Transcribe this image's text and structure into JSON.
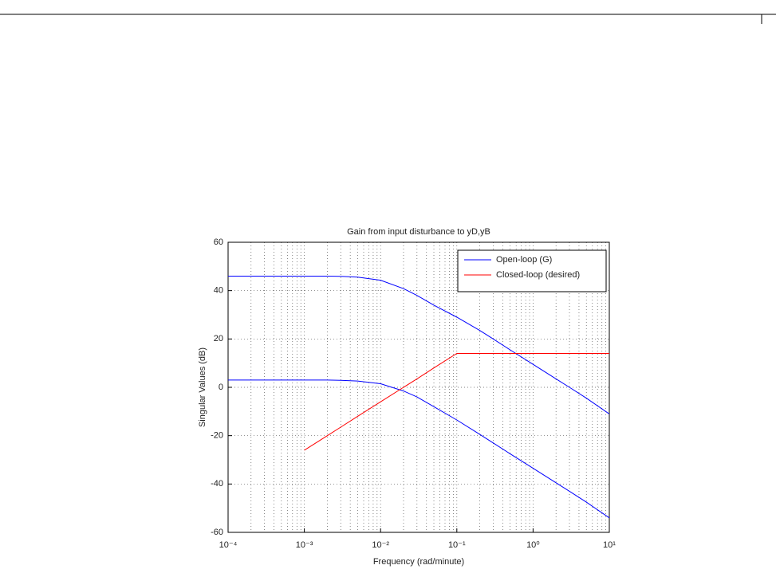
{
  "chart_data": {
    "type": "line",
    "title": "Gain from input disturbance to yD,yB",
    "x_label": "Frequency (rad/minute)",
    "y_label": "Singular Values (dB)",
    "x_scale": "log",
    "x": [
      0.0001,
      0.0003,
      0.001,
      0.002,
      0.003,
      0.005,
      0.01,
      0.02,
      0.03,
      0.05,
      0.1,
      0.2,
      0.3,
      0.5,
      1,
      2,
      3,
      5,
      10
    ],
    "series": [
      {
        "name": "Open-loop (G)",
        "color": "#0000ff",
        "values": [
          46,
          46,
          46,
          46,
          45.9,
          45.6,
          44.3,
          40.8,
          38,
          34,
          29,
          23.5,
          20,
          15.5,
          9.5,
          3.5,
          0,
          -4.5,
          -11
        ]
      },
      {
        "color": "#0000ff",
        "values": [
          3,
          3,
          3,
          3,
          2.9,
          2.6,
          1.5,
          -1.5,
          -4,
          -8,
          -13.5,
          -19.5,
          -23,
          -27.5,
          -33.5,
          -39.5,
          -43,
          -47.5,
          -54
        ]
      },
      {
        "name": "Closed-loop (desired)",
        "color": "#ff0000",
        "values": [
          null,
          null,
          -26,
          -20,
          -16.5,
          -12,
          -6,
          0,
          3.5,
          8,
          14,
          14,
          14,
          14,
          14,
          14,
          14,
          14,
          14
        ]
      }
    ],
    "xlim": [
      0.0001,
      10
    ],
    "xticks": [
      {
        "value": 0.0001,
        "label": "10⁻⁴"
      },
      {
        "value": 0.001,
        "label": "10⁻³"
      },
      {
        "value": 0.01,
        "label": "10⁻²"
      },
      {
        "value": 0.1,
        "label": "10⁻¹"
      },
      {
        "value": 1,
        "label": "10⁰"
      },
      {
        "value": 10,
        "label": "10¹"
      }
    ],
    "ylim": [
      -60,
      60
    ],
    "yticks": [
      -60,
      -40,
      -20,
      0,
      20,
      40,
      60
    ],
    "grid": true,
    "legend": "upper right"
  }
}
